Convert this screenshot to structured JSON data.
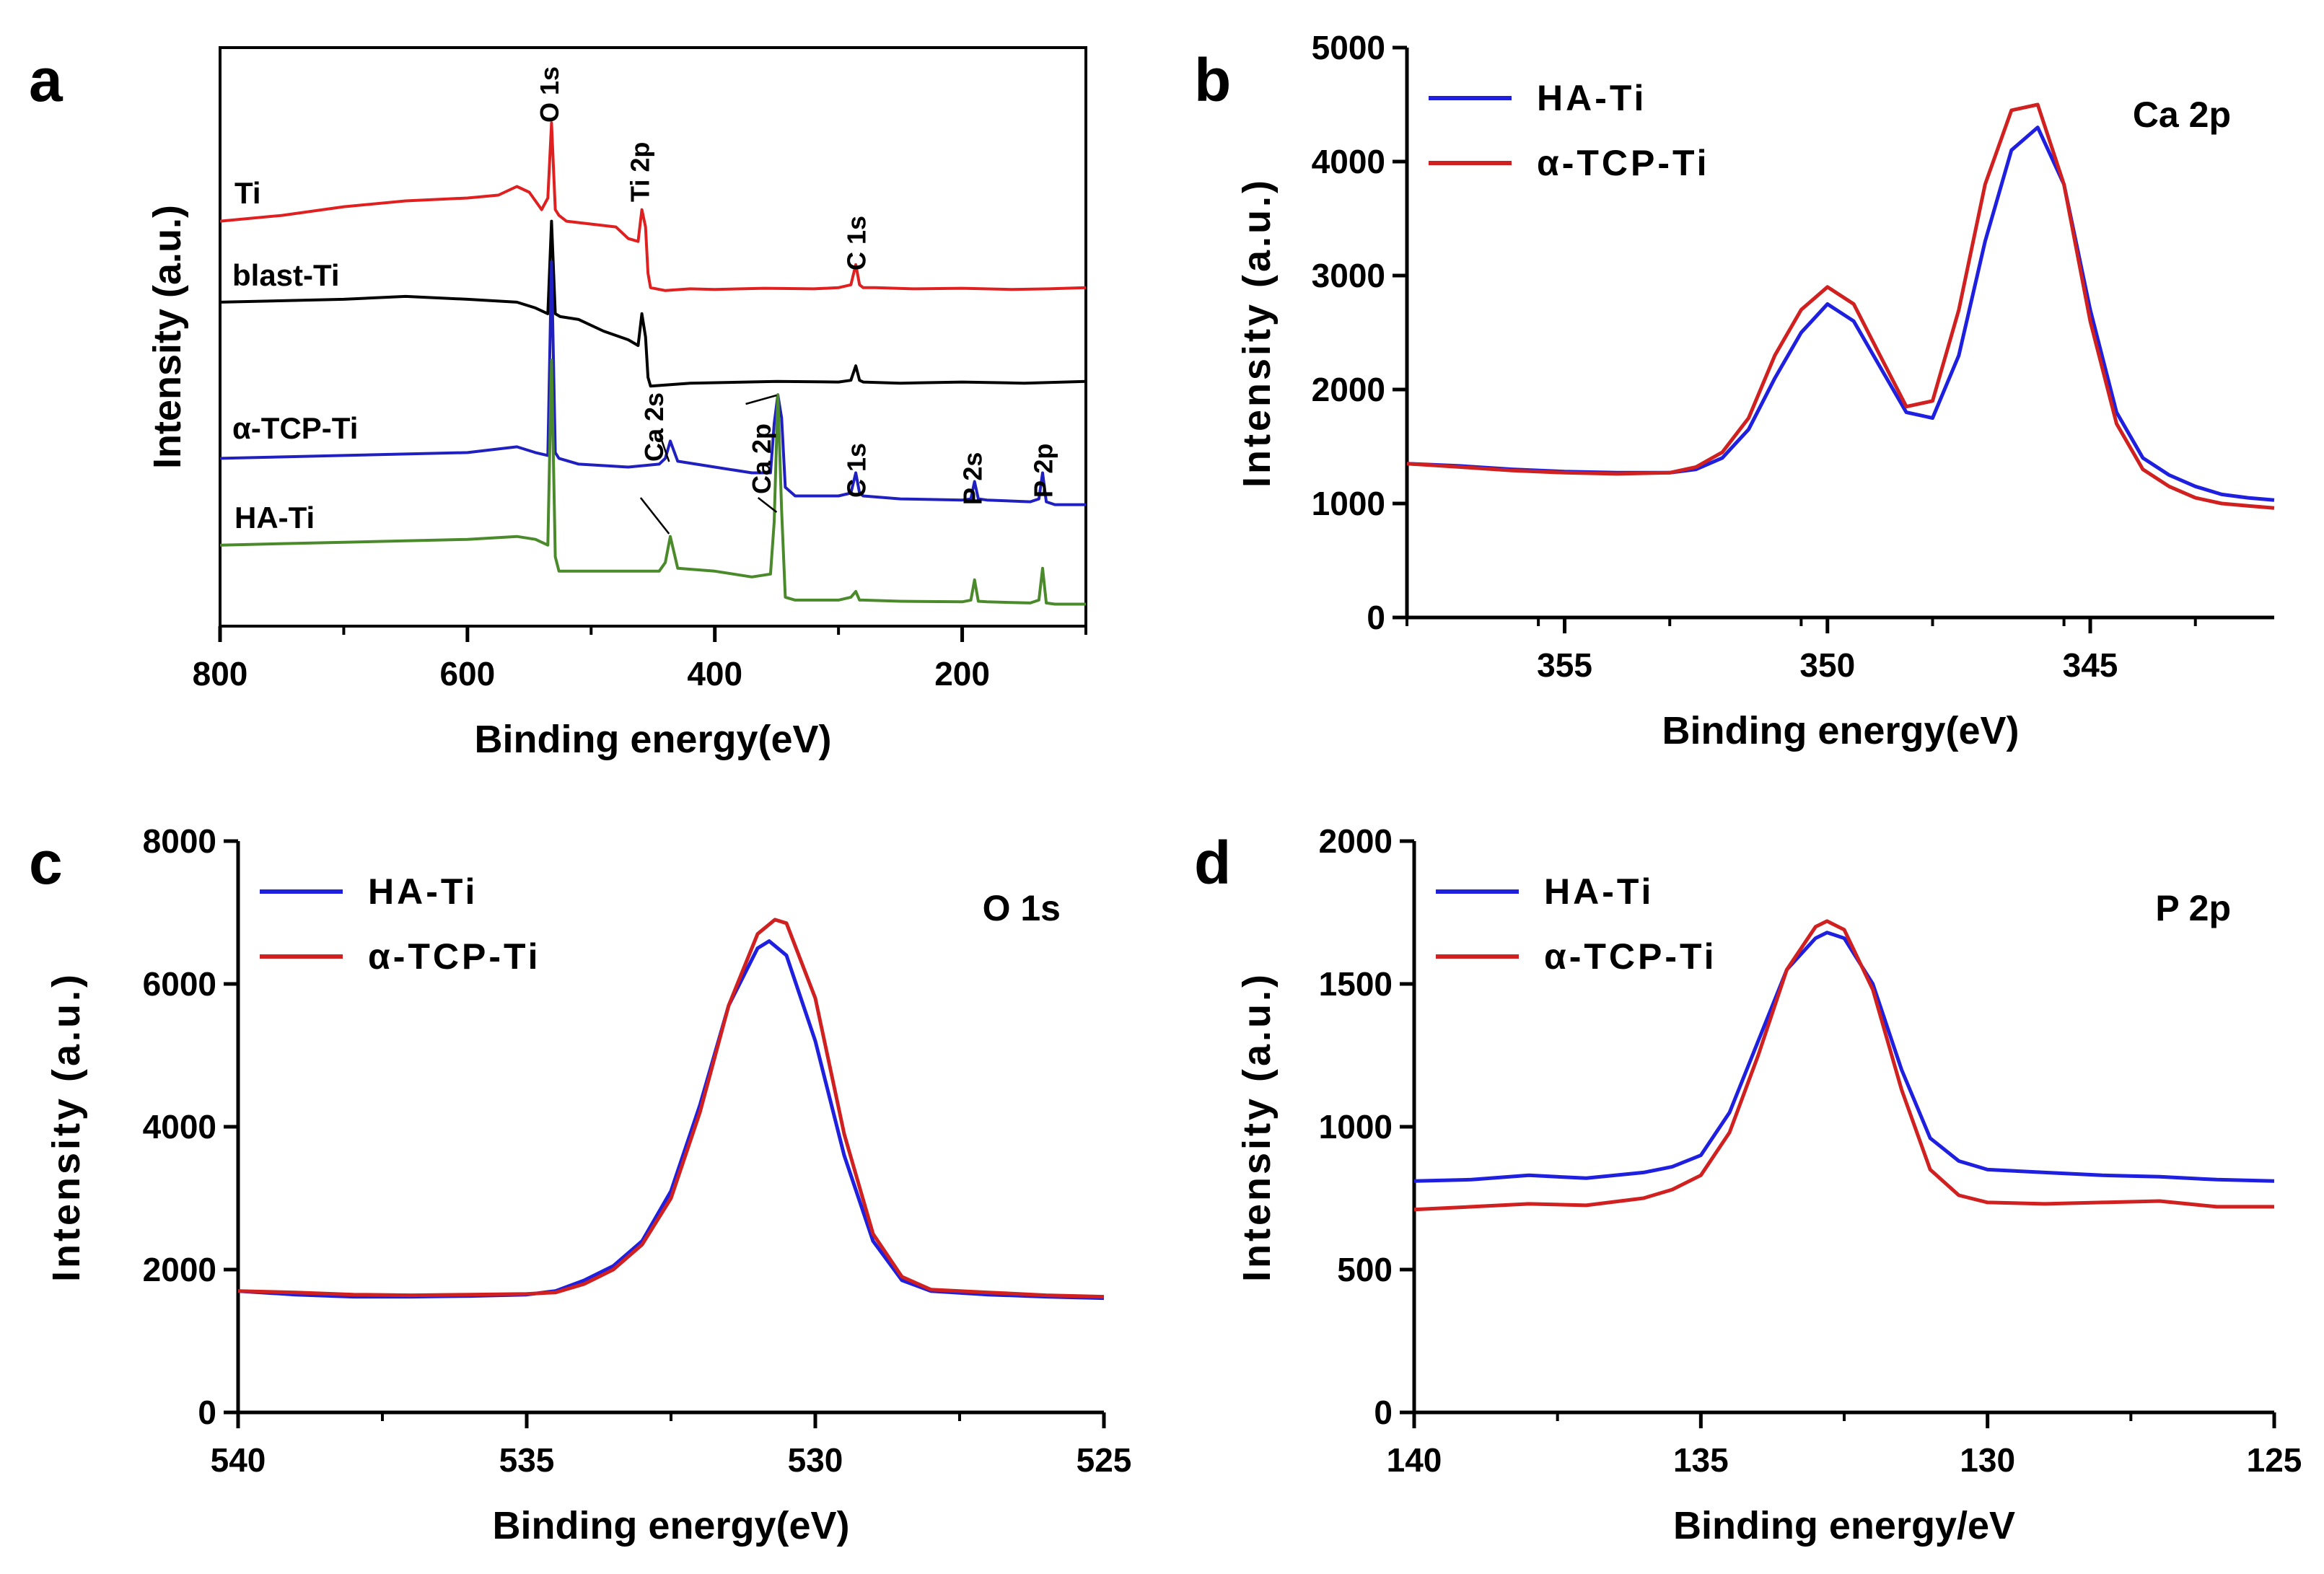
{
  "chart_data": [
    {
      "id": "a",
      "panel_label": "a",
      "type": "line",
      "title": "",
      "xlabel": "Binding energy(eV)",
      "ylabel": "Intensity (a.u.)",
      "xlim": [
        800,
        100
      ],
      "xticks": [
        800,
        600,
        400,
        200
      ],
      "xtick_labels": [
        "800",
        "600",
        "400",
        "200"
      ],
      "ylim": [
        0,
        100
      ],
      "yticks": [],
      "ytick_labels": [],
      "series": [
        {
          "name": "Ti",
          "label": "Ti",
          "color": "#e02020",
          "x": [
            800,
            750,
            700,
            650,
            600,
            575,
            560,
            550,
            540,
            535,
            532,
            529,
            526,
            520,
            500,
            480,
            470,
            462,
            459,
            456,
            454,
            452,
            440,
            420,
            400,
            360,
            320,
            300,
            290,
            286,
            283,
            280,
            270,
            240,
            200,
            160,
            130,
            100
          ],
          "y": [
            70,
            71,
            72.5,
            73.5,
            74,
            74.5,
            76,
            75,
            72,
            74,
            87,
            72,
            71,
            70,
            69.5,
            69,
            67,
            66.5,
            72,
            69,
            61,
            58.5,
            58,
            58.3,
            58.2,
            58.4,
            58.3,
            58.5,
            59,
            62.5,
            59,
            58.5,
            58.5,
            58.3,
            58.4,
            58.2,
            58.3,
            58.5
          ]
        },
        {
          "name": "blast-Ti",
          "label": "blast-Ti",
          "color": "#000000",
          "x": [
            800,
            700,
            650,
            600,
            560,
            545,
            535,
            532,
            529,
            525,
            510,
            490,
            470,
            462,
            459,
            456,
            454,
            452,
            420,
            350,
            300,
            290,
            286,
            283,
            280,
            250,
            200,
            150,
            100
          ],
          "y": [
            56,
            56.5,
            57,
            56.5,
            56,
            55,
            54,
            70,
            54,
            53.5,
            53,
            51,
            49.5,
            48.5,
            54,
            50,
            43,
            41.5,
            42,
            42.3,
            42.2,
            42.5,
            45,
            42.5,
            42.2,
            42,
            42.2,
            42,
            42.3
          ]
        },
        {
          "name": "α-TCP-Ti",
          "label": "α-TCP-Ti",
          "color": "#2020c0",
          "x": [
            800,
            700,
            600,
            560,
            545,
            535,
            532,
            529,
            526,
            510,
            470,
            445,
            440,
            436,
            430,
            400,
            370,
            355,
            352,
            349,
            346,
            343,
            335,
            300,
            290,
            286,
            283,
            280,
            250,
            200,
            193,
            190,
            187,
            180,
            145,
            138,
            135,
            132,
            125,
            100
          ],
          "y": [
            29,
            29.5,
            30,
            31,
            30,
            29.5,
            63,
            30,
            29,
            28,
            27.5,
            28,
            29,
            32,
            28.5,
            27.5,
            26.5,
            26.5,
            35,
            40,
            36,
            24,
            22.5,
            22.5,
            23,
            26.5,
            23,
            22.5,
            22,
            21.8,
            22,
            25,
            22,
            21.8,
            21.5,
            22,
            26.5,
            21.5,
            21,
            21
          ]
        },
        {
          "name": "HA-Ti",
          "label": "HA-Ti",
          "color": "#4a8a2a",
          "x": [
            800,
            700,
            600,
            560,
            545,
            535,
            532,
            529,
            526,
            510,
            470,
            445,
            440,
            436,
            430,
            400,
            370,
            355,
            352,
            349,
            346,
            343,
            335,
            300,
            290,
            286,
            283,
            280,
            250,
            200,
            193,
            190,
            187,
            180,
            145,
            138,
            135,
            132,
            125,
            100
          ],
          "y": [
            14,
            14.5,
            15,
            15.5,
            15,
            14,
            46,
            12,
            9.5,
            9.5,
            9.5,
            9.5,
            11,
            15.5,
            10,
            9.5,
            8.5,
            9,
            18,
            40,
            20,
            5,
            4.5,
            4.5,
            5,
            6,
            4.5,
            4.5,
            4.3,
            4.2,
            4.5,
            8,
            4.3,
            4.2,
            4,
            4.5,
            10,
            4,
            3.8,
            3.8
          ]
        }
      ],
      "annotations": [
        {
          "text": "O 1s",
          "x": 531
        },
        {
          "text": "Ti 2p",
          "x": 459
        },
        {
          "text": "C 1s",
          "x": 284
        },
        {
          "text": "Ca 2s",
          "x": 439
        },
        {
          "text": "Ca 2p",
          "x": 349
        },
        {
          "text": "C 1s",
          "x": 284
        },
        {
          "text": "P 2s",
          "x": 190
        },
        {
          "text": "P 2p",
          "x": 133
        }
      ]
    },
    {
      "id": "b",
      "panel_label": "b",
      "type": "line",
      "title": "Ca 2p",
      "xlabel": "Binding energy(eV)",
      "ylabel": "Intensity (a.u.)",
      "xlim": [
        358,
        341.5
      ],
      "xticks": [
        355,
        350,
        345
      ],
      "xtick_labels": [
        "355",
        "350",
        "345"
      ],
      "ylim": [
        0,
        5000
      ],
      "yticks": [
        0,
        1000,
        2000,
        3000,
        4000,
        5000
      ],
      "ytick_labels": [
        "0",
        "1000",
        "2000",
        "3000",
        "4000",
        "5000"
      ],
      "legend": {
        "position": "top-left",
        "entries": [
          "HA-Ti",
          "α-TCP-Ti"
        ]
      },
      "series": [
        {
          "name": "HA-Ti",
          "color": "#1f1fe0",
          "x": [
            358,
            357,
            356,
            355,
            354,
            353,
            352.5,
            352,
            351.5,
            351,
            350.5,
            350,
            349.5,
            349,
            348.5,
            348,
            347.5,
            347,
            346.5,
            346,
            345.5,
            345,
            344.5,
            344,
            343.5,
            343,
            342.5,
            342,
            341.5
          ],
          "y": [
            1350,
            1330,
            1300,
            1280,
            1270,
            1270,
            1300,
            1400,
            1650,
            2100,
            2500,
            2750,
            2600,
            2200,
            1800,
            1750,
            2300,
            3300,
            4100,
            4300,
            3800,
            2700,
            1800,
            1400,
            1250,
            1150,
            1080,
            1050,
            1030
          ]
        },
        {
          "name": "α-TCP-Ti",
          "color": "#d02020",
          "x": [
            358,
            357,
            356,
            355,
            354,
            353,
            352.5,
            352,
            351.5,
            351,
            350.5,
            350,
            349.5,
            349,
            348.5,
            348,
            347.5,
            347,
            346.5,
            346,
            345.5,
            345,
            344.5,
            344,
            343.5,
            343,
            342.5,
            342,
            341.5
          ],
          "y": [
            1350,
            1320,
            1290,
            1270,
            1260,
            1270,
            1320,
            1450,
            1750,
            2300,
            2700,
            2900,
            2750,
            2300,
            1850,
            1900,
            2700,
            3800,
            4450,
            4500,
            3800,
            2600,
            1700,
            1300,
            1150,
            1050,
            1000,
            980,
            960
          ]
        }
      ]
    },
    {
      "id": "c",
      "panel_label": "c",
      "type": "line",
      "title": "O 1s",
      "xlabel": "Binding energy(eV)",
      "ylabel": "Intensity (a.u.)",
      "xlim": [
        540,
        525
      ],
      "xticks": [
        540,
        535,
        530,
        525
      ],
      "xtick_labels": [
        "540",
        "535",
        "530",
        "525"
      ],
      "ylim": [
        0,
        8000
      ],
      "yticks": [
        0,
        2000,
        4000,
        6000,
        8000
      ],
      "ytick_labels": [
        "0",
        "2000",
        "4000",
        "6000",
        "8000"
      ],
      "legend": {
        "position": "top-left",
        "entries": [
          "HA-Ti",
          "α-TCP-Ti"
        ]
      },
      "series": [
        {
          "name": "HA-Ti",
          "color": "#1f1fe0",
          "x": [
            540,
            539,
            538,
            537,
            536,
            535,
            534.5,
            534,
            533.5,
            533,
            532.5,
            532,
            531.5,
            531,
            530.8,
            530.5,
            530,
            529.5,
            529,
            528.5,
            528,
            527,
            526,
            525
          ],
          "y": [
            1700,
            1650,
            1620,
            1620,
            1630,
            1650,
            1700,
            1850,
            2050,
            2400,
            3100,
            4300,
            5700,
            6500,
            6600,
            6400,
            5200,
            3600,
            2400,
            1850,
            1700,
            1650,
            1620,
            1600
          ]
        },
        {
          "name": "α-TCP-Ti",
          "color": "#d02020",
          "x": [
            540,
            539,
            538,
            537,
            536,
            535,
            534.5,
            534,
            533.5,
            533,
            532.5,
            532,
            531.5,
            531,
            530.7,
            530.5,
            530,
            529.5,
            529,
            528.5,
            528,
            527,
            526,
            525
          ],
          "y": [
            1700,
            1680,
            1650,
            1640,
            1650,
            1660,
            1680,
            1800,
            2000,
            2350,
            3000,
            4200,
            5700,
            6700,
            6900,
            6850,
            5800,
            3900,
            2500,
            1900,
            1720,
            1680,
            1640,
            1620
          ]
        }
      ]
    },
    {
      "id": "d",
      "panel_label": "d",
      "type": "line",
      "title": "P 2p",
      "xlabel": "Binding energy/eV",
      "ylabel": "Intensity (a.u.)",
      "xlim": [
        140,
        125
      ],
      "xticks": [
        140,
        135,
        130,
        125
      ],
      "xtick_labels": [
        "140",
        "135",
        "130",
        "125"
      ],
      "ylim": [
        0,
        2000
      ],
      "yticks": [
        0,
        500,
        1000,
        1500,
        2000
      ],
      "ytick_labels": [
        "0",
        "500",
        "1000",
        "1500",
        "2000"
      ],
      "legend": {
        "position": "top-left",
        "entries": [
          "HA-Ti",
          "α-TCP-Ti"
        ]
      },
      "series": [
        {
          "name": "HA-Ti",
          "color": "#1f1fe0",
          "x": [
            140,
            139,
            138,
            137,
            136,
            135.5,
            135,
            134.5,
            134,
            133.5,
            133,
            132.8,
            132.5,
            132,
            131.5,
            131,
            130.5,
            130,
            129,
            128,
            127,
            126,
            125
          ],
          "y": [
            810,
            815,
            830,
            820,
            840,
            860,
            900,
            1050,
            1300,
            1550,
            1660,
            1680,
            1660,
            1500,
            1200,
            960,
            880,
            850,
            840,
            830,
            825,
            815,
            810
          ]
        },
        {
          "name": "α-TCP-Ti",
          "color": "#d02020",
          "x": [
            140,
            139,
            138,
            137,
            136,
            135.5,
            135,
            134.5,
            134,
            133.5,
            133,
            132.8,
            132.5,
            132,
            131.5,
            131,
            130.5,
            130,
            129,
            128,
            127,
            126,
            125
          ],
          "y": [
            710,
            720,
            730,
            725,
            750,
            780,
            830,
            980,
            1250,
            1550,
            1700,
            1720,
            1690,
            1480,
            1130,
            850,
            760,
            735,
            730,
            735,
            740,
            720,
            720
          ]
        }
      ]
    }
  ]
}
